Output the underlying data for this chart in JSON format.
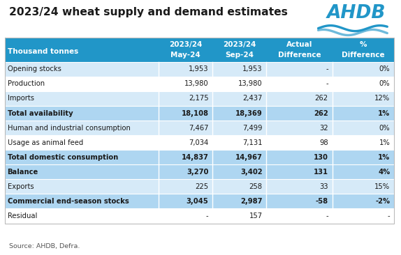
{
  "title": "2023/24 wheat supply and demand estimates",
  "source": "Source: AHDB, Defra.",
  "col_headers_line1": [
    "2023/24",
    "2023/24",
    "Actual",
    "%"
  ],
  "col_headers_line2": [
    "May-24",
    "Sep-24",
    "Difference",
    "Difference"
  ],
  "row_label_header": "Thousand tonnes",
  "rows": [
    {
      "label": "Opening stocks",
      "bold": false,
      "may": "1,953",
      "sep": "1,953",
      "actual": "-",
      "pct": "0%",
      "bg": "light"
    },
    {
      "label": "Production",
      "bold": false,
      "may": "13,980",
      "sep": "13,980",
      "actual": "-",
      "pct": "0%",
      "bg": "white"
    },
    {
      "label": "Imports",
      "bold": false,
      "may": "2,175",
      "sep": "2,437",
      "actual": "262",
      "pct": "12%",
      "bg": "light"
    },
    {
      "label": "Total availability",
      "bold": true,
      "may": "18,108",
      "sep": "18,369",
      "actual": "262",
      "pct": "1%",
      "bg": "mid"
    },
    {
      "label": "Human and industrial consumption",
      "bold": false,
      "may": "7,467",
      "sep": "7,499",
      "actual": "32",
      "pct": "0%",
      "bg": "light"
    },
    {
      "label": "Usage as animal feed",
      "bold": false,
      "may": "7,034",
      "sep": "7,131",
      "actual": "98",
      "pct": "1%",
      "bg": "white"
    },
    {
      "label": "Total domestic consumption",
      "bold": true,
      "may": "14,837",
      "sep": "14,967",
      "actual": "130",
      "pct": "1%",
      "bg": "mid"
    },
    {
      "label": "Balance",
      "bold": true,
      "may": "3,270",
      "sep": "3,402",
      "actual": "131",
      "pct": "4%",
      "bg": "mid"
    },
    {
      "label": "Exports",
      "bold": false,
      "may": "225",
      "sep": "258",
      "actual": "33",
      "pct": "15%",
      "bg": "light"
    },
    {
      "label": "Commercial end-season stocks",
      "bold": true,
      "may": "3,045",
      "sep": "2,987",
      "actual": "-58",
      "pct": "-2%",
      "bg": "mid"
    },
    {
      "label": "Residual",
      "bold": false,
      "may": "-",
      "sep": "157",
      "actual": "-",
      "pct": "-",
      "bg": "white"
    }
  ],
  "colors": {
    "header_bg": "#2196C8",
    "header_text": "#ffffff",
    "light_bg": "#d6eaf8",
    "mid_bg": "#aed6f1",
    "white_bg": "#ffffff",
    "normal_text": "#1a1a1a",
    "title_text": "#1a1a1a",
    "source_text": "#555555"
  }
}
